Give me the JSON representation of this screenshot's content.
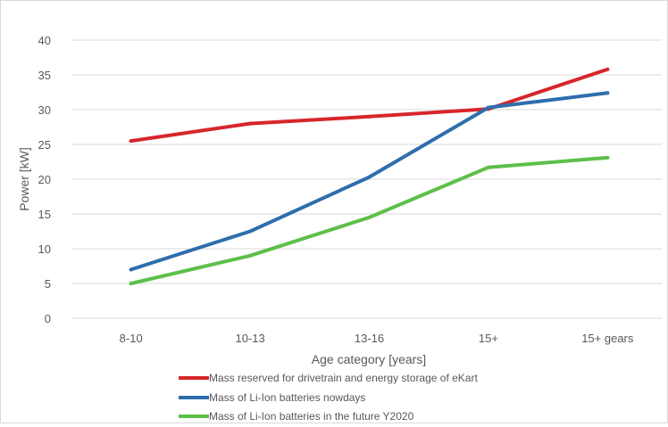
{
  "chart_data": {
    "type": "line",
    "categories": [
      "8-10",
      "10-13",
      "13-16",
      "15+",
      "15+ gears"
    ],
    "series": [
      {
        "name": "Mass reserved for drivetrain and energy storage of eKart",
        "color": "#d7262b",
        "values": [
          25.5,
          28,
          29,
          30.1,
          35.8
        ]
      },
      {
        "name": "Mass of Li-Ion batteries nowdays",
        "color": "#2e6ead",
        "values": [
          7,
          12.5,
          20.3,
          30.3,
          32.4
        ]
      },
      {
        "name": "Mass of Li-Ion batteries in the future Y2020",
        "color": "#5ebf4a",
        "values": [
          5,
          9,
          14.5,
          21.7,
          23.1
        ]
      }
    ],
    "yticks": [
      "0",
      "5",
      "10",
      "15",
      "20",
      "25",
      "30",
      "35",
      "40"
    ],
    "ylim": [
      0,
      40
    ],
    "xlabel": "Age category [years]",
    "ylabel": "Power  [kW]",
    "grid": "horizontal",
    "legend_position": "bottom"
  }
}
